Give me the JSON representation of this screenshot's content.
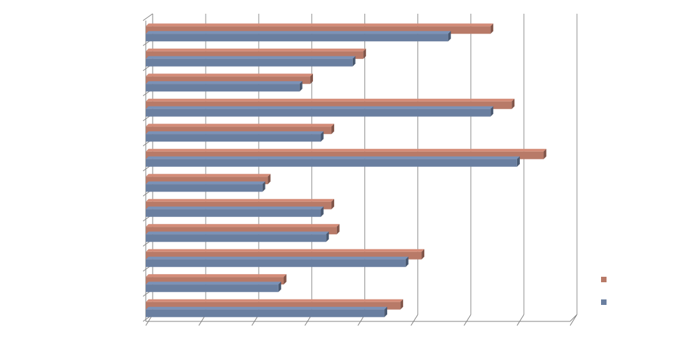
{
  "chart_data": {
    "type": "bar",
    "orientation": "horizontal",
    "categories": [
      null,
      null,
      null,
      null,
      null,
      null,
      null,
      null,
      null,
      null,
      null,
      null
    ],
    "series": [
      {
        "color": "#b87a68",
        "values": [
          6.5,
          4.1,
          3.1,
          6.9,
          3.5,
          7.5,
          2.3,
          3.5,
          3.6,
          5.2,
          2.6,
          4.8
        ]
      },
      {
        "color": "#6a7fa0",
        "values": [
          5.7,
          3.9,
          2.9,
          6.5,
          3.3,
          7.0,
          2.2,
          3.3,
          3.4,
          4.9,
          2.5,
          4.5
        ]
      }
    ],
    "xlim": [
      0,
      8
    ],
    "xticks": [
      0,
      1,
      2,
      3,
      4,
      5,
      6,
      7,
      8
    ],
    "grid": true,
    "legend": "right"
  }
}
